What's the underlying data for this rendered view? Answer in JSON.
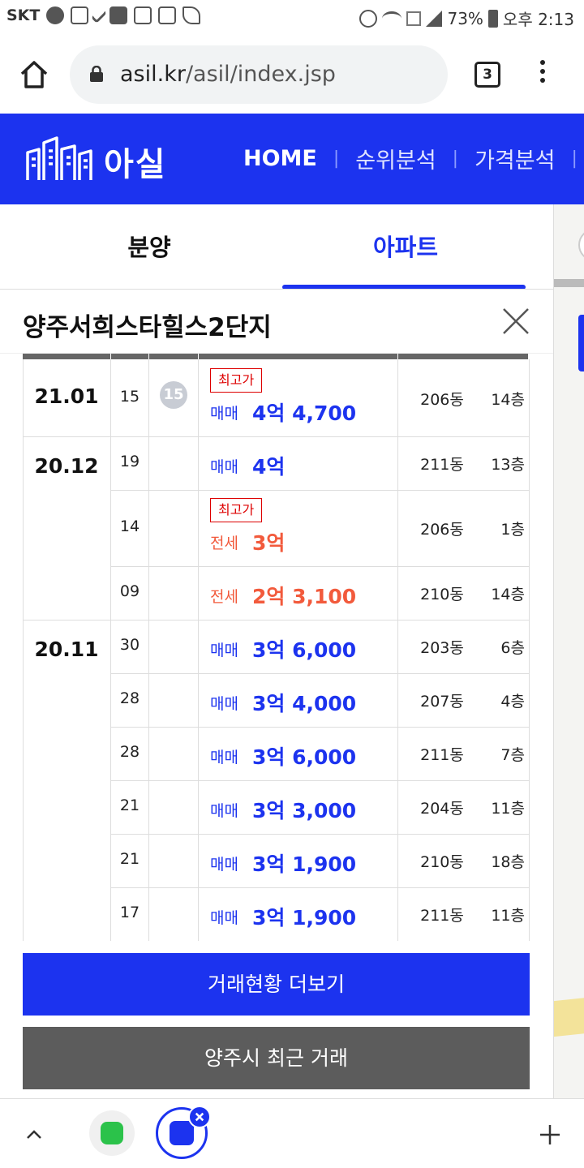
{
  "status_bar": {
    "carrier": "SKT",
    "battery": "73%",
    "time": "오후 2:13"
  },
  "browser": {
    "url_host": "asil.kr",
    "url_path": "/asil/index.jsp",
    "tab_count": "3"
  },
  "site": {
    "logo_text": "아실",
    "nav": [
      "HOME",
      "순위분석",
      "가격분석"
    ]
  },
  "tabs": {
    "left": "분양",
    "right": "아파트",
    "active": "아파트"
  },
  "apartment": {
    "title": "양주서희스타힐스2단지"
  },
  "deals": {
    "months": [
      "21.01",
      "20.12",
      "20.11"
    ],
    "max_label": "최고가",
    "rows": [
      {
        "day": "15",
        "badge": "15",
        "max": true,
        "type": "매매",
        "kind": "sale",
        "price": "4억 4,700",
        "dong": "206동",
        "floor": "14층"
      },
      {
        "day": "19",
        "badge": "",
        "max": false,
        "type": "매매",
        "kind": "sale",
        "price": "4억",
        "dong": "211동",
        "floor": "13층"
      },
      {
        "day": "14",
        "badge": "",
        "max": true,
        "type": "전세",
        "kind": "lease",
        "price": "3억",
        "dong": "206동",
        "floor": "1층"
      },
      {
        "day": "09",
        "badge": "",
        "max": false,
        "type": "전세",
        "kind": "lease",
        "price": "2억 3,100",
        "dong": "210동",
        "floor": "14층"
      },
      {
        "day": "30",
        "badge": "",
        "max": false,
        "type": "매매",
        "kind": "sale",
        "price": "3억 6,000",
        "dong": "203동",
        "floor": "6층"
      },
      {
        "day": "28",
        "badge": "",
        "max": false,
        "type": "매매",
        "kind": "sale",
        "price": "3억 4,000",
        "dong": "207동",
        "floor": "4층"
      },
      {
        "day": "28",
        "badge": "",
        "max": false,
        "type": "매매",
        "kind": "sale",
        "price": "3억 6,000",
        "dong": "211동",
        "floor": "7층"
      },
      {
        "day": "21",
        "badge": "",
        "max": false,
        "type": "매매",
        "kind": "sale",
        "price": "3억 3,000",
        "dong": "204동",
        "floor": "11층"
      },
      {
        "day": "21",
        "badge": "",
        "max": false,
        "type": "매매",
        "kind": "sale",
        "price": "3억 1,900",
        "dong": "210동",
        "floor": "18층"
      },
      {
        "day": "17",
        "badge": "",
        "max": false,
        "type": "매매",
        "kind": "sale",
        "price": "3억 1,900",
        "dong": "211동",
        "floor": "11층"
      }
    ]
  },
  "buttons": {
    "more": "거래현황 더보기",
    "recent": "양주시 최근 거래"
  },
  "colors": {
    "brand_blue": "#1c33ef",
    "lease_orange": "#f25a3c",
    "max_red": "#dd0000",
    "dark_button": "#5c5c5c"
  },
  "icons": [
    "home-icon",
    "lock-icon",
    "tab-switcher-icon",
    "menu-icon",
    "close-icon",
    "chevron-up-icon",
    "plus-icon"
  ]
}
